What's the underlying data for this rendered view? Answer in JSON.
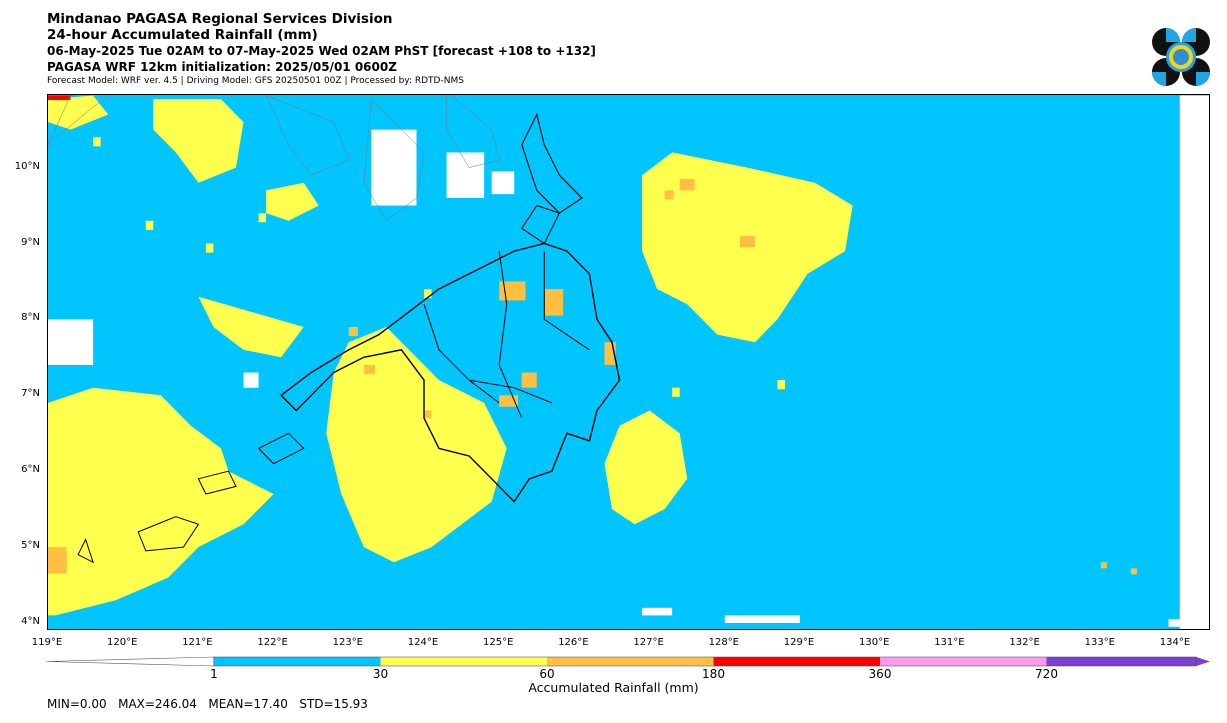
{
  "header": {
    "title": "Mindanao PAGASA Regional Services Division",
    "subtitle": "24-hour Accumulated Rainfall (mm)",
    "period": "06-May-2025 Tue 02AM to 07-May-2025 Wed 02AM PhST [forecast +108 to +132]",
    "init": "PAGASA WRF 12km initialization: 2025/05/01 0600Z",
    "model": "Forecast Model: WRF ver. 4.5 | Driving Model: GFS 20250501 00Z | Processed by: RDTD-NMS"
  },
  "map": {
    "lon_range": [
      119,
      134.5
    ],
    "lat_range": [
      3.9,
      10.95
    ],
    "lat_ticks": [
      "10°N",
      "9°N",
      "8°N",
      "7°N",
      "6°N",
      "5°N",
      "4°N"
    ],
    "lon_ticks": [
      "119°E",
      "120°E",
      "121°E",
      "122°E",
      "123°E",
      "124°E",
      "125°E",
      "126°E",
      "127°E",
      "128°E",
      "129°E",
      "130°E",
      "131°E",
      "132°E",
      "133°E",
      "134°E"
    ],
    "rain_colors": {
      "none": "#ffffff",
      "1-30": "#00c5ff",
      "30-60": "#ffff4d",
      "60-180": "#ffbf40",
      "180-360": "#ff0000"
    }
  },
  "colorbar": {
    "label": "Accumulated Rainfall (mm)",
    "ticks": [
      "1",
      "30",
      "60",
      "180",
      "360",
      "720"
    ],
    "colors": [
      "#00c5ff",
      "#ffff4d",
      "#ffbf40",
      "#ff0000",
      "#ff99ee",
      "#7b3fd6"
    ]
  },
  "stats": {
    "text": "MIN=0.00   MAX=246.04   MEAN=17.40   STD=15.93"
  }
}
